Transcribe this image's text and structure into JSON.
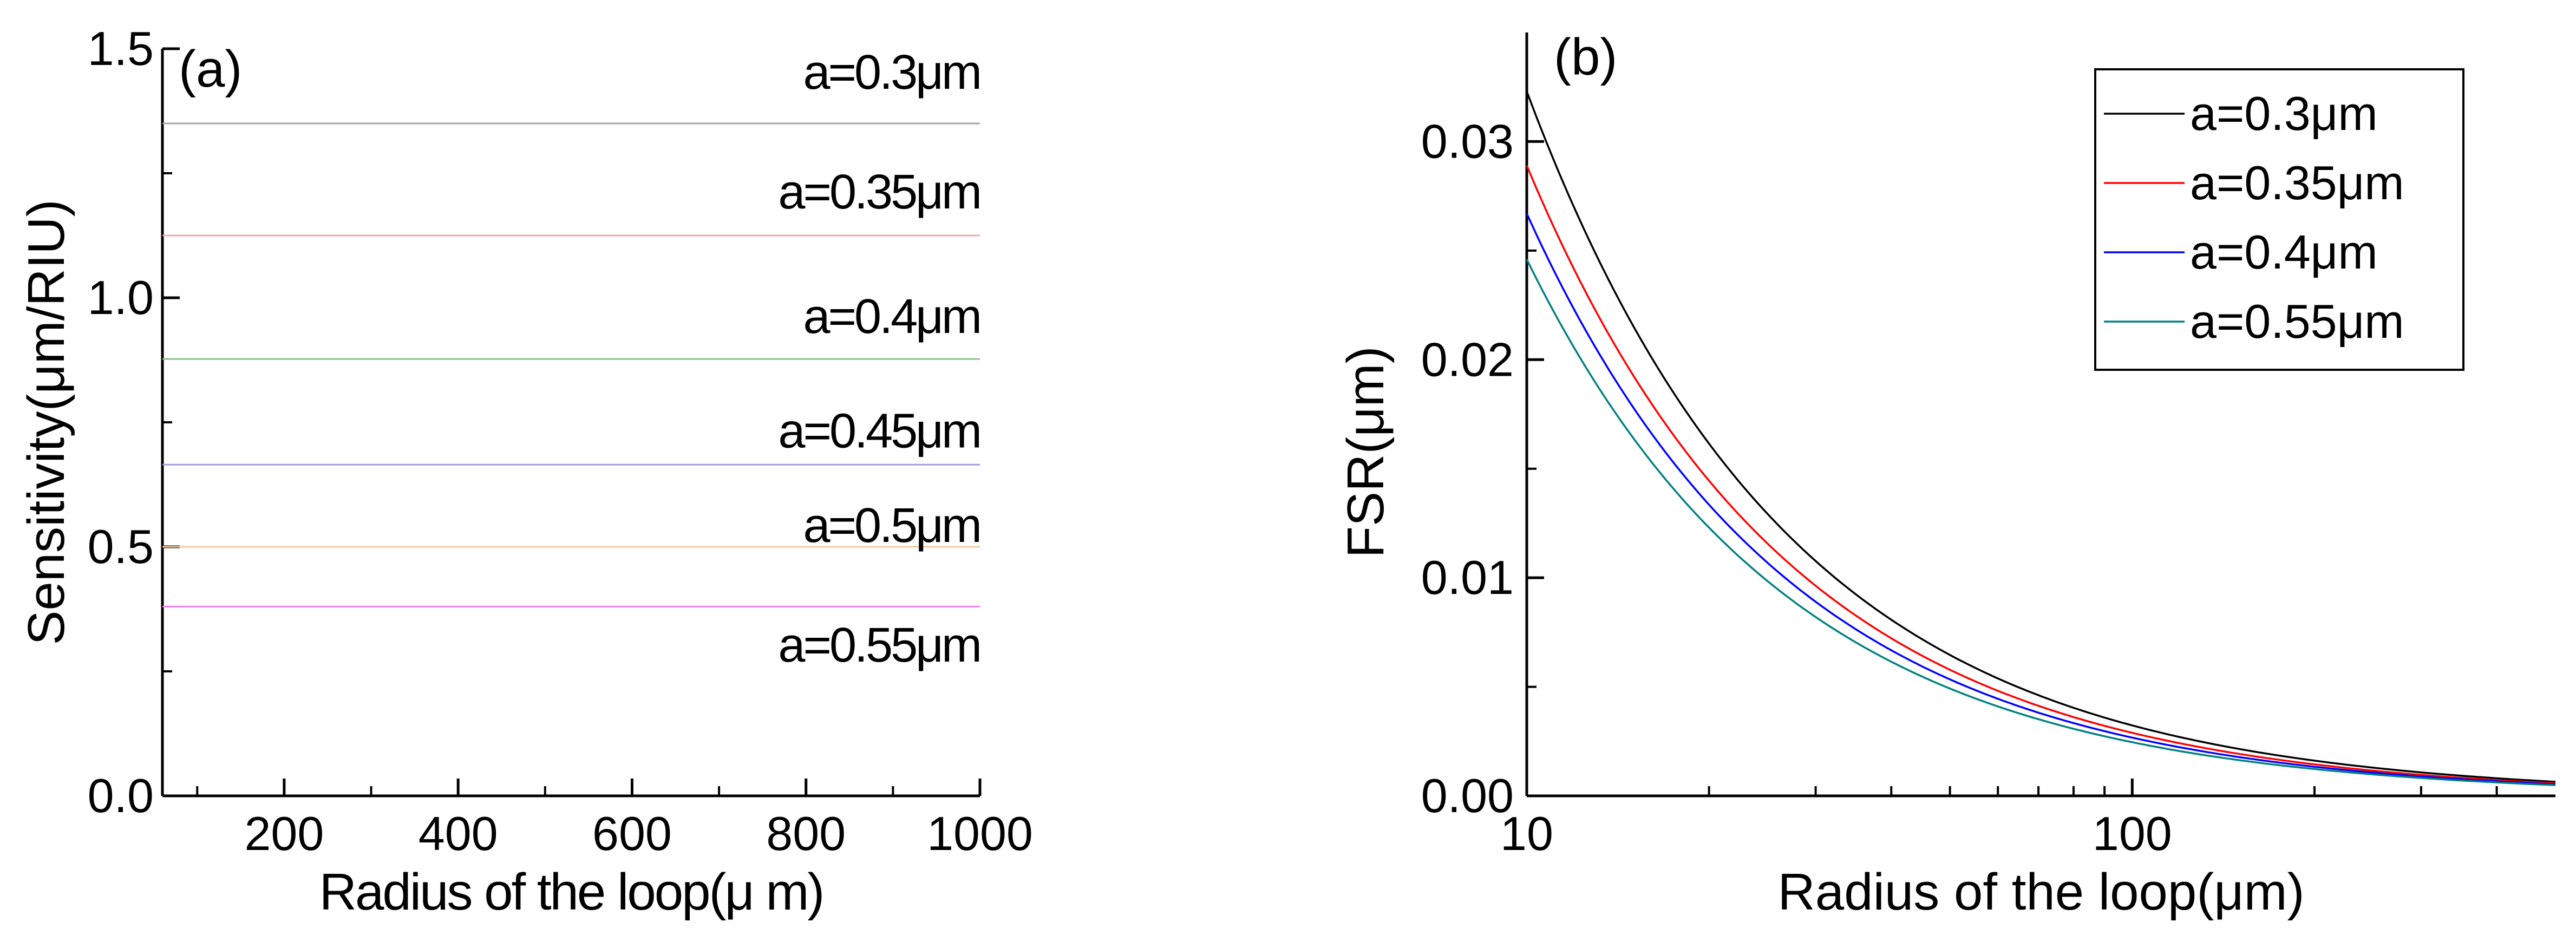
{
  "chart_data": [
    {
      "panel": "(a)",
      "type": "line",
      "title": "",
      "xlabel": "Radius of the loop(μ m)",
      "ylabel": "Sensitivity(μm/RIU)",
      "xlim": [
        60,
        1000
      ],
      "ylim": [
        0.0,
        1.5
      ],
      "xticks": [
        200,
        400,
        600,
        800,
        1000
      ],
      "yticks": [
        0.0,
        0.5,
        1.0,
        1.5
      ],
      "ytick_labels": [
        "0.0",
        "0.5",
        "1.0",
        "1.5"
      ],
      "xtick_labels": [
        "200",
        "400",
        "600",
        "800",
        "1000"
      ],
      "series": [
        {
          "name": "a=0.3μm",
          "color": "#a6a6a6",
          "x": [
            60,
            1000
          ],
          "y": [
            1.35,
            1.35
          ]
        },
        {
          "name": "a=0.35μm",
          "color": "#f0a8a8",
          "x": [
            60,
            1000
          ],
          "y": [
            1.125,
            1.125
          ]
        },
        {
          "name": "a=0.4μm",
          "color": "#8cc08c",
          "x": [
            60,
            1000
          ],
          "y": [
            0.877,
            0.877
          ]
        },
        {
          "name": "a=0.45μm",
          "color": "#a0a0e0",
          "x": [
            60,
            1000
          ],
          "y": [
            0.665,
            0.665
          ]
        },
        {
          "name": "a=0.5μm",
          "color": "#f5c8a0",
          "x": [
            60,
            1000
          ],
          "y": [
            0.5,
            0.5
          ]
        },
        {
          "name": "a=0.55μm",
          "color": "#f080f0",
          "x": [
            60,
            1000
          ],
          "y": [
            0.38,
            0.38
          ]
        }
      ],
      "annotations": [
        "a=0.3μm",
        "a=0.35μm",
        "a=0.4μm",
        "a=0.45μm",
        "a=0.5μm",
        "a=0.55μm"
      ]
    },
    {
      "panel": "(b)",
      "type": "line",
      "title": "",
      "xlabel": "Radius of the loop(μm)",
      "ylabel": "FSR(μm)",
      "xscale": "log",
      "xlim": [
        10,
        500
      ],
      "ylim": [
        0.0,
        0.035
      ],
      "xticks": [
        10,
        100
      ],
      "xtick_labels": [
        "10",
        "100"
      ],
      "yticks": [
        0.0,
        0.01,
        0.02,
        0.03
      ],
      "ytick_labels": [
        "0.00",
        "0.01",
        "0.02",
        "0.03"
      ],
      "legend_position": "top-right",
      "series": [
        {
          "name": "a=0.3μm",
          "color": "#000000",
          "x": [
            10,
            15,
            20,
            30,
            50,
            100,
            200,
            500
          ],
          "y": [
            0.0323,
            0.0215,
            0.0162,
            0.0108,
            0.0065,
            0.0032,
            0.0016,
            0.0006
          ]
        },
        {
          "name": "a=0.35μm",
          "color": "#ff0000",
          "x": [
            10,
            15,
            20,
            30,
            50,
            100,
            200,
            500
          ],
          "y": [
            0.0289,
            0.0193,
            0.0145,
            0.0096,
            0.0058,
            0.0029,
            0.00145,
            0.00058
          ]
        },
        {
          "name": "a=0.4μm",
          "color": "#0000ff",
          "x": [
            10,
            15,
            20,
            30,
            50,
            100,
            200,
            500
          ],
          "y": [
            0.0267,
            0.0178,
            0.0134,
            0.0089,
            0.0053,
            0.0027,
            0.00134,
            0.00053
          ]
        },
        {
          "name": "a=0.55μm",
          "color": "#008080",
          "x": [
            10,
            15,
            20,
            30,
            50,
            100,
            200,
            500
          ],
          "y": [
            0.0246,
            0.0164,
            0.0123,
            0.0082,
            0.0049,
            0.0025,
            0.00123,
            0.00049
          ]
        }
      ]
    }
  ]
}
